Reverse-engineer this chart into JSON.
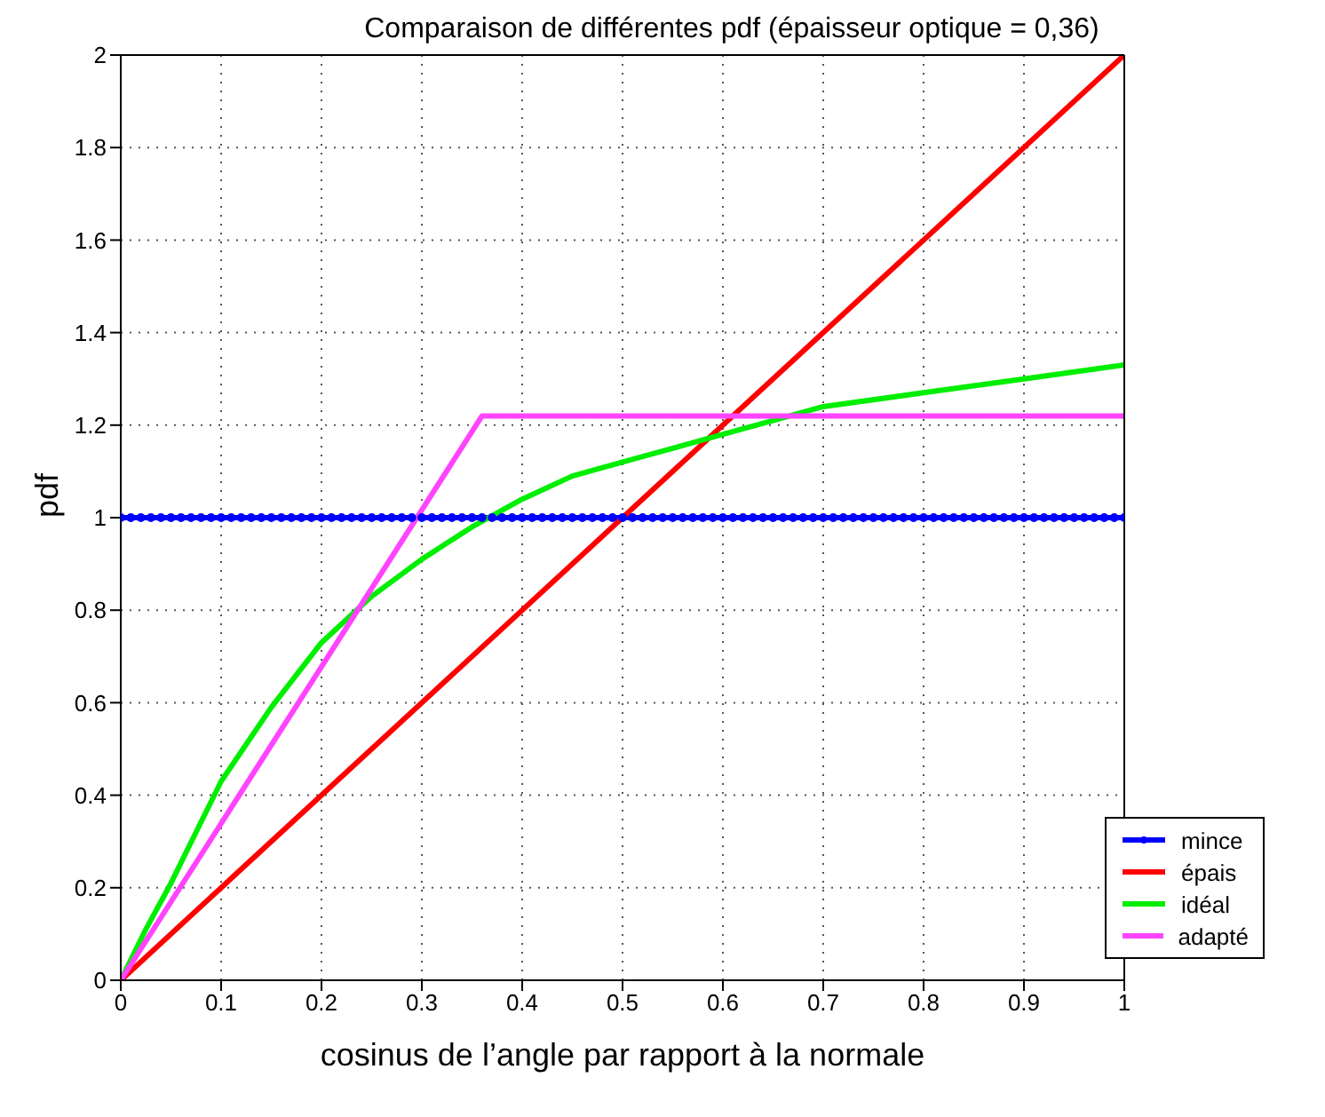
{
  "chart_data": {
    "type": "line",
    "title": "Comparaison de différentes pdf (épaisseur optique = 0,36)",
    "xlabel": "cosinus de l’angle par rapport à la normale",
    "ylabel": "pdf",
    "xlim": [
      0,
      1
    ],
    "xticks": [
      0,
      0.1,
      0.2,
      0.3,
      0.4,
      0.5,
      0.6,
      0.7,
      0.8,
      0.9,
      1
    ],
    "ylim": [
      0,
      2
    ],
    "yticks": [
      0,
      0.2,
      0.4,
      0.6,
      0.8,
      1,
      1.2,
      1.4,
      1.6,
      1.8,
      2
    ],
    "grid": true,
    "legend": "bottom right",
    "line_style": "solid",
    "series": [
      {
        "name": "mince",
        "color": "#0000ff",
        "marker": "circle",
        "x": [
          0,
          0.01,
          0.02,
          0.03,
          0.04,
          0.05,
          0.06,
          0.07,
          0.08,
          0.09,
          0.1,
          0.11,
          0.12,
          0.13,
          0.14,
          0.15,
          0.16,
          0.17,
          0.18,
          0.19,
          0.2,
          0.21,
          0.22,
          0.23,
          0.24,
          0.25,
          0.26,
          0.27,
          0.28,
          0.29,
          0.3,
          0.31,
          0.32,
          0.33,
          0.34,
          0.35,
          0.36,
          0.37,
          0.38,
          0.39,
          0.4,
          0.41,
          0.42,
          0.43,
          0.44,
          0.45,
          0.46,
          0.47,
          0.48,
          0.49,
          0.5,
          0.51,
          0.52,
          0.53,
          0.54,
          0.55,
          0.56,
          0.57,
          0.58,
          0.59,
          0.6,
          0.61,
          0.62,
          0.63,
          0.64,
          0.65,
          0.66,
          0.67,
          0.68,
          0.69,
          0.7,
          0.71,
          0.72,
          0.73,
          0.74,
          0.75,
          0.76,
          0.77,
          0.78,
          0.79,
          0.8,
          0.81,
          0.82,
          0.83,
          0.84,
          0.85,
          0.86,
          0.87,
          0.88,
          0.89,
          0.9,
          0.91,
          0.92,
          0.93,
          0.94,
          0.95,
          0.96,
          0.97,
          0.98,
          0.99,
          1
        ],
        "values": [
          1,
          1,
          1,
          1,
          1,
          1,
          1,
          1,
          1,
          1,
          1,
          1,
          1,
          1,
          1,
          1,
          1,
          1,
          1,
          1,
          1,
          1,
          1,
          1,
          1,
          1,
          1,
          1,
          1,
          1,
          1,
          1,
          1,
          1,
          1,
          1,
          1,
          1,
          1,
          1,
          1,
          1,
          1,
          1,
          1,
          1,
          1,
          1,
          1,
          1,
          1,
          1,
          1,
          1,
          1,
          1,
          1,
          1,
          1,
          1,
          1,
          1,
          1,
          1,
          1,
          1,
          1,
          1,
          1,
          1,
          1,
          1,
          1,
          1,
          1,
          1,
          1,
          1,
          1,
          1,
          1,
          1,
          1,
          1,
          1,
          1,
          1,
          1,
          1,
          1,
          1,
          1,
          1,
          1,
          1,
          1,
          1,
          1,
          1,
          1,
          1
        ]
      },
      {
        "name": "épais",
        "color": "#ff0000",
        "x": [
          0,
          1
        ],
        "values": [
          0,
          2
        ]
      },
      {
        "name": "idéal",
        "color": "#00ee00",
        "x": [
          0,
          0.025,
          0.05,
          0.075,
          0.1,
          0.125,
          0.15,
          0.175,
          0.2,
          0.25,
          0.3,
          0.35,
          0.4,
          0.45,
          0.5,
          0.55,
          0.6,
          0.65,
          0.7,
          0.8,
          0.9,
          1
        ],
        "values": [
          0,
          0.11,
          0.21,
          0.32,
          0.43,
          0.51,
          0.59,
          0.66,
          0.73,
          0.83,
          0.91,
          0.98,
          1.04,
          1.09,
          1.12,
          1.15,
          1.18,
          1.21,
          1.24,
          1.27,
          1.3,
          1.33
        ]
      },
      {
        "name": "adapté",
        "color": "#ff44ff",
        "x": [
          0,
          0.36,
          1
        ],
        "values": [
          0,
          1.22,
          1.22
        ]
      }
    ]
  }
}
